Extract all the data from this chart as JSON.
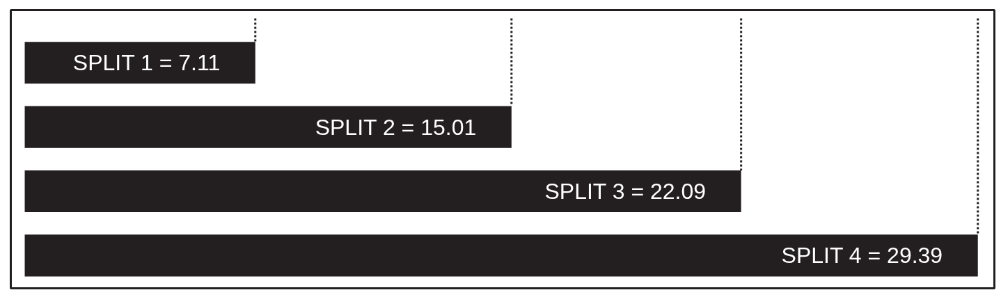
{
  "chart_data": {
    "type": "bar",
    "orientation": "horizontal",
    "categories": [
      null,
      null,
      null,
      null
    ],
    "values": [
      7.11,
      15.01,
      22.09,
      29.39
    ],
    "color": "#231f20",
    "value_labels": [
      "SPLIT 1 = 7.11",
      "SPLIT 2 = 15.01",
      "SPLIT 3 = 22.09",
      "SPLIT 4 = 29.39"
    ],
    "xlim": [
      -0.43,
      29.9
    ],
    "tick_labels": false,
    "grid": false,
    "ref_lines": [
      {
        "axis": "x",
        "value": 7.11,
        "line_style": "dotted",
        "color": "#231f20"
      },
      {
        "axis": "x",
        "value": 15.01,
        "line_style": "dotted",
        "color": "#231f20"
      },
      {
        "axis": "x",
        "value": 22.09,
        "line_style": "dotted",
        "color": "#231f20"
      },
      {
        "axis": "x",
        "value": 29.39,
        "line_style": "dotted",
        "color": "#231f20"
      }
    ]
  }
}
